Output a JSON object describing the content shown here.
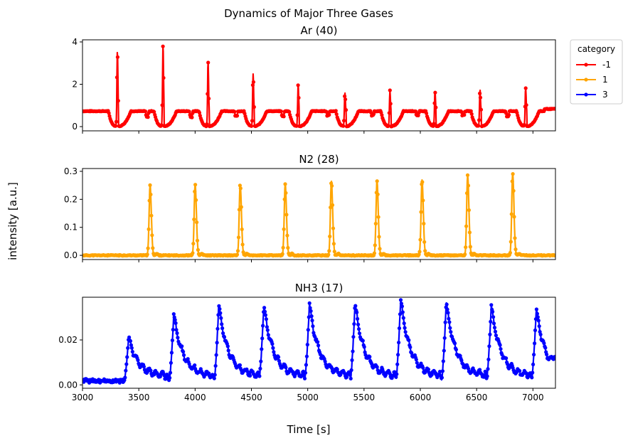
{
  "chart_data": {
    "type": "line",
    "suptitle": "Dynamics of Major Three Gases",
    "xlabel": "Time [s]",
    "ylabel": "intensity [a.u.]",
    "xlim": [
      3000,
      7200
    ],
    "x_ticks": [
      3000,
      3500,
      4000,
      4500,
      5000,
      5500,
      6000,
      6500,
      7000
    ],
    "marker": "dot",
    "legend": {
      "title": "category",
      "placement": "outside-top-right",
      "entries": [
        {
          "label": "-1",
          "color": "#ff0000"
        },
        {
          "label": "1",
          "color": "#ffa500"
        },
        {
          "label": "3",
          "color": "#0000ff"
        }
      ]
    },
    "panels": [
      {
        "title": "Ar (40)",
        "category": "-1",
        "color": "#ff0000",
        "ylim": [
          -0.2,
          4.1
        ],
        "y_ticks": [
          0,
          2,
          4
        ],
        "baseline": 0.73,
        "valley": 0.02,
        "peaks": [
          {
            "x": 3310,
            "y": 3.6
          },
          {
            "x": 3715,
            "y": 3.9
          },
          {
            "x": 4115,
            "y": 3.1
          },
          {
            "x": 4515,
            "y": 2.5
          },
          {
            "x": 4915,
            "y": 2.0
          },
          {
            "x": 5330,
            "y": 1.6
          },
          {
            "x": 5730,
            "y": 1.7
          },
          {
            "x": 6130,
            "y": 1.7
          },
          {
            "x": 6530,
            "y": 1.75
          },
          {
            "x": 6935,
            "y": 1.85
          }
        ],
        "small_bumps": [
          {
            "x": 3575,
            "y": 0.5
          },
          {
            "x": 3965,
            "y": 0.5
          },
          {
            "x": 4365,
            "y": 0.55
          },
          {
            "x": 4780,
            "y": 0.55
          },
          {
            "x": 5180,
            "y": 0.6
          },
          {
            "x": 5575,
            "y": 0.6
          },
          {
            "x": 5975,
            "y": 0.6
          },
          {
            "x": 6380,
            "y": 0.6
          },
          {
            "x": 6775,
            "y": 0.55
          }
        ],
        "end_value": 0.88
      },
      {
        "title": "N2 (28)",
        "category": "1",
        "color": "#ffa500",
        "ylim": [
          -0.015,
          0.31
        ],
        "y_ticks": [
          0.0,
          0.1,
          0.2,
          0.3
        ],
        "baseline": 0.0,
        "peaks": [
          {
            "x": 3600,
            "y": 0.25
          },
          {
            "x": 4000,
            "y": 0.255
          },
          {
            "x": 4400,
            "y": 0.255
          },
          {
            "x": 4800,
            "y": 0.255
          },
          {
            "x": 5210,
            "y": 0.265
          },
          {
            "x": 5615,
            "y": 0.265
          },
          {
            "x": 6015,
            "y": 0.27
          },
          {
            "x": 6420,
            "y": 0.285
          },
          {
            "x": 6820,
            "y": 0.295
          }
        ]
      },
      {
        "title": "NH3 (17)",
        "category": "3",
        "color": "#0000ff",
        "ylim": [
          -0.0015,
          0.039
        ],
        "y_ticks": [
          0.0,
          0.02
        ],
        "baseline": 0.0018,
        "peaks": [
          {
            "x": 3410,
            "y": 0.021
          },
          {
            "x": 3810,
            "y": 0.031
          },
          {
            "x": 4210,
            "y": 0.0355
          },
          {
            "x": 4610,
            "y": 0.035
          },
          {
            "x": 5015,
            "y": 0.036
          },
          {
            "x": 5420,
            "y": 0.036
          },
          {
            "x": 5825,
            "y": 0.038
          },
          {
            "x": 6230,
            "y": 0.0365
          },
          {
            "x": 6630,
            "y": 0.035
          },
          {
            "x": 7030,
            "y": 0.034
          }
        ],
        "troughs": [
          {
            "x": 3770,
            "y": 0.0018
          },
          {
            "x": 4170,
            "y": 0.0025
          },
          {
            "x": 4570,
            "y": 0.0035
          },
          {
            "x": 4975,
            "y": 0.003
          },
          {
            "x": 5380,
            "y": 0.003
          },
          {
            "x": 5785,
            "y": 0.003
          },
          {
            "x": 6190,
            "y": 0.0025
          },
          {
            "x": 6590,
            "y": 0.003
          },
          {
            "x": 6990,
            "y": 0.003
          }
        ],
        "end_value": 0.012
      }
    ]
  }
}
